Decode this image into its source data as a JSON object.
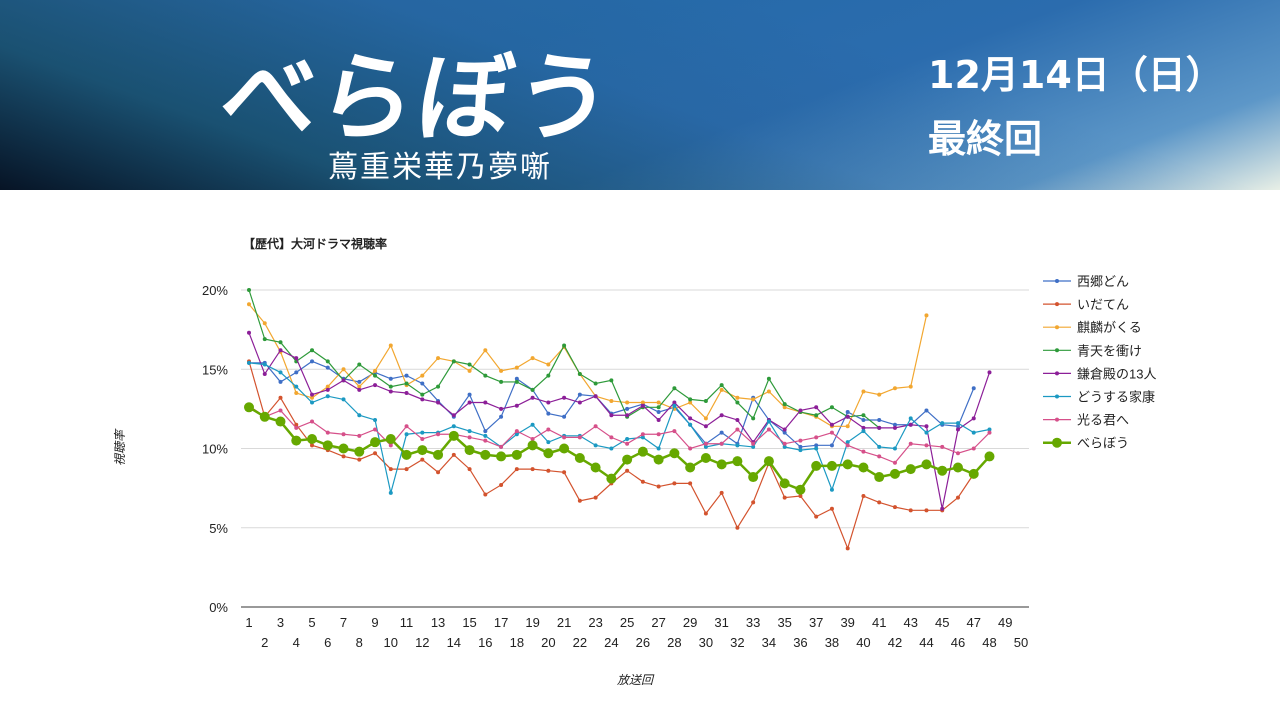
{
  "banner": {
    "title": "べらぼう",
    "subtitle": "蔦重栄華乃夢噺",
    "date": "12月14日（日）",
    "episode_note": "最終回"
  },
  "chart_data": {
    "type": "line",
    "title": "【歴代】大河ドラマ視聴率",
    "xlabel": "放送回",
    "ylabel": "視聴率",
    "ylim": [
      0,
      20
    ],
    "yticks": [
      "0%",
      "5%",
      "10%",
      "15%",
      "20%"
    ],
    "xlim": [
      1,
      50
    ],
    "grid": true,
    "legend": "right",
    "series": [
      {
        "name": "西郷どん",
        "color": "#3f6fc6",
        "values": [
          15.4,
          15.4,
          14.2,
          14.8,
          15.5,
          15.1,
          14.4,
          14.2,
          14.8,
          14.4,
          14.6,
          14.1,
          13.0,
          12.0,
          13.4,
          11.1,
          12.0,
          14.4,
          13.7,
          12.2,
          12.0,
          13.4,
          13.3,
          12.2,
          12.5,
          12.8,
          12.3,
          12.6,
          11.5,
          10.3,
          11.0,
          10.3,
          13.2,
          11.8,
          11.0,
          10.1,
          10.2,
          10.2,
          12.3,
          11.8,
          11.8,
          11.5,
          11.5,
          12.4,
          11.5,
          11.4,
          13.8
        ]
      },
      {
        "name": "いだてん",
        "color": "#d3532e",
        "values": [
          15.5,
          12.0,
          13.2,
          11.5,
          10.2,
          9.9,
          9.5,
          9.3,
          9.7,
          8.7,
          8.7,
          9.3,
          8.5,
          9.6,
          8.7,
          7.1,
          7.7,
          8.7,
          8.7,
          8.6,
          8.5,
          6.7,
          6.9,
          7.8,
          8.6,
          7.9,
          7.6,
          7.8,
          7.8,
          5.9,
          7.2,
          5.0,
          6.6,
          9.1,
          6.9,
          7.0,
          5.7,
          6.2,
          3.7,
          7.0,
          6.6,
          6.3,
          6.1,
          6.1,
          6.1,
          6.9,
          8.4
        ]
      },
      {
        "name": "麒麟がくる",
        "color": "#f2a730",
        "values": [
          19.1,
          17.9,
          16.1,
          13.5,
          13.2,
          13.9,
          15.0,
          13.9,
          14.9,
          16.5,
          14.0,
          14.6,
          15.7,
          15.5,
          14.9,
          16.2,
          14.9,
          15.1,
          15.7,
          15.3,
          16.4,
          14.7,
          13.3,
          13.0,
          12.9,
          12.9,
          12.9,
          12.5,
          12.9,
          11.9,
          13.7,
          13.2,
          13.1,
          13.6,
          12.6,
          12.3,
          12.0,
          11.4,
          11.4,
          13.6,
          13.4,
          13.8,
          13.9,
          18.4
        ]
      },
      {
        "name": "青天を衝け",
        "color": "#2e9a3a",
        "values": [
          20.0,
          16.9,
          16.7,
          15.5,
          16.2,
          15.5,
          14.3,
          15.3,
          14.6,
          13.9,
          14.1,
          13.4,
          13.9,
          15.5,
          15.3,
          14.6,
          14.2,
          14.2,
          13.7,
          14.6,
          16.5,
          14.7,
          14.1,
          14.3,
          12.0,
          12.6,
          12.6,
          13.8,
          13.1,
          13.0,
          14.0,
          12.9,
          11.9,
          14.4,
          12.8,
          12.3,
          12.1,
          12.6,
          12.0,
          12.1,
          11.3
        ]
      },
      {
        "name": "鎌倉殿の13人",
        "color": "#8c1f98",
        "values": [
          17.3,
          14.7,
          16.2,
          15.7,
          13.4,
          13.7,
          14.3,
          13.7,
          14.0,
          13.6,
          13.5,
          13.1,
          12.9,
          12.1,
          12.9,
          12.9,
          12.5,
          12.7,
          13.2,
          12.9,
          13.2,
          12.9,
          13.3,
          12.1,
          12.1,
          12.7,
          11.8,
          12.9,
          11.9,
          11.4,
          12.1,
          11.8,
          10.4,
          11.8,
          11.2,
          12.4,
          12.6,
          11.5,
          12.0,
          11.3,
          11.3,
          11.3,
          11.5,
          11.4,
          6.2,
          11.2,
          11.9,
          14.8
        ]
      },
      {
        "name": "どうする家康",
        "color": "#1b99c2",
        "values": [
          15.4,
          15.3,
          14.8,
          13.9,
          12.9,
          13.3,
          13.1,
          12.1,
          11.8,
          7.2,
          10.9,
          11.0,
          11.0,
          11.4,
          11.1,
          10.8,
          10.1,
          10.9,
          11.5,
          10.4,
          10.8,
          10.8,
          10.2,
          10.0,
          10.6,
          10.7,
          10.0,
          12.7,
          11.5,
          10.1,
          10.3,
          10.2,
          10.1,
          11.7,
          10.1,
          9.9,
          10.0,
          7.4,
          10.4,
          11.1,
          10.1,
          10.0,
          11.9,
          11.0,
          11.6,
          11.6,
          11.0,
          11.2
        ]
      },
      {
        "name": "光る君へ",
        "color": "#d6508a",
        "values": [
          12.7,
          12.0,
          12.4,
          11.3,
          11.7,
          11.0,
          10.9,
          10.8,
          11.2,
          10.2,
          11.4,
          10.6,
          10.9,
          10.9,
          10.7,
          10.5,
          10.1,
          11.1,
          10.6,
          11.2,
          10.7,
          10.7,
          11.4,
          10.7,
          10.3,
          10.9,
          10.9,
          11.1,
          10.0,
          10.3,
          10.3,
          11.2,
          10.3,
          11.2,
          10.3,
          10.5,
          10.7,
          11.0,
          10.2,
          9.8,
          9.5,
          9.1,
          10.3,
          10.2,
          10.1,
          9.7,
          10.0,
          11.0
        ]
      },
      {
        "name": "べらぼう",
        "color": "#66a800",
        "emphasis": true,
        "values": [
          12.6,
          12.0,
          11.7,
          10.5,
          10.6,
          10.2,
          10.0,
          9.8,
          10.4,
          10.6,
          9.6,
          9.9,
          9.6,
          10.8,
          9.9,
          9.6,
          9.5,
          9.6,
          10.2,
          9.7,
          10.0,
          9.4,
          8.8,
          8.1,
          9.3,
          9.8,
          9.3,
          9.7,
          8.8,
          9.4,
          9.0,
          9.2,
          8.2,
          9.2,
          7.8,
          7.4,
          8.9,
          8.9,
          9.0,
          8.8,
          8.2,
          8.4,
          8.7,
          9.0,
          8.6,
          8.8,
          8.4,
          9.5
        ]
      }
    ]
  }
}
